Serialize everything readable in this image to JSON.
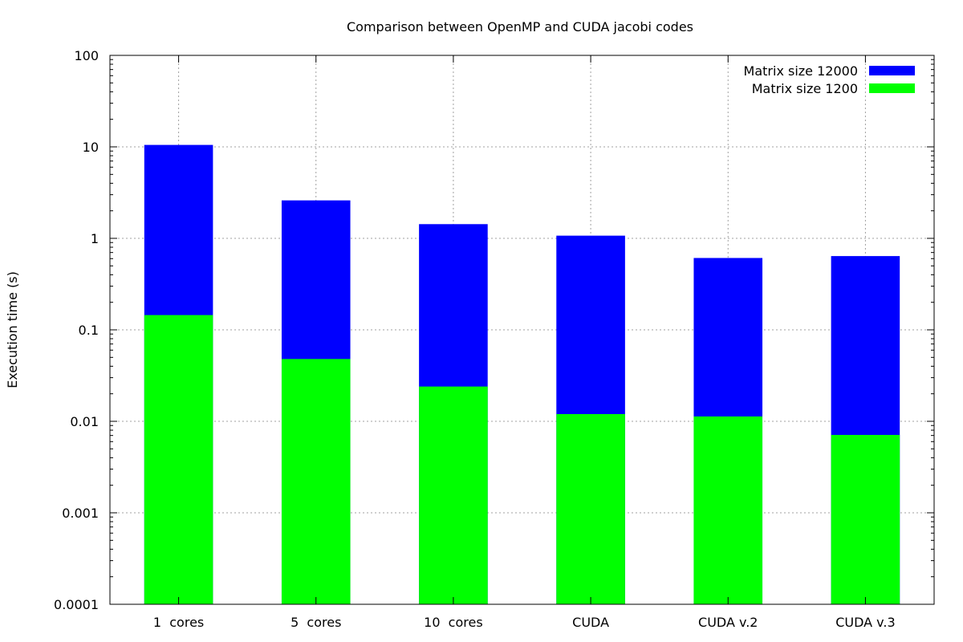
{
  "chart_data": {
    "type": "bar",
    "title": "Comparison between OpenMP and CUDA jacobi codes",
    "ylabel": "Execution time (s)",
    "xlabel": "",
    "yscale": "log",
    "ylim": [
      0.0001,
      100
    ],
    "yticks": [
      {
        "value": 100,
        "label": "100"
      },
      {
        "value": 10,
        "label": "10"
      },
      {
        "value": 1,
        "label": "1"
      },
      {
        "value": 0.1,
        "label": "0.1"
      },
      {
        "value": 0.01,
        "label": "0.01"
      },
      {
        "value": 0.001,
        "label": "0.001"
      },
      {
        "value": 0.0001,
        "label": "0.0001"
      }
    ],
    "grid": true,
    "legend_position": "top-right",
    "categories": [
      "1  cores",
      "5  cores",
      "10  cores",
      "CUDA",
      "CUDA v.2",
      "CUDA v.3"
    ],
    "series": [
      {
        "name": "Matrix size 12000",
        "color": "#0000ff",
        "values": [
          10.5,
          2.6,
          1.43,
          1.07,
          0.61,
          0.64
        ]
      },
      {
        "name": "Matrix size 1200",
        "color": "#00ff00",
        "values": [
          0.145,
          0.048,
          0.024,
          0.012,
          0.0113,
          0.0071
        ]
      }
    ]
  }
}
